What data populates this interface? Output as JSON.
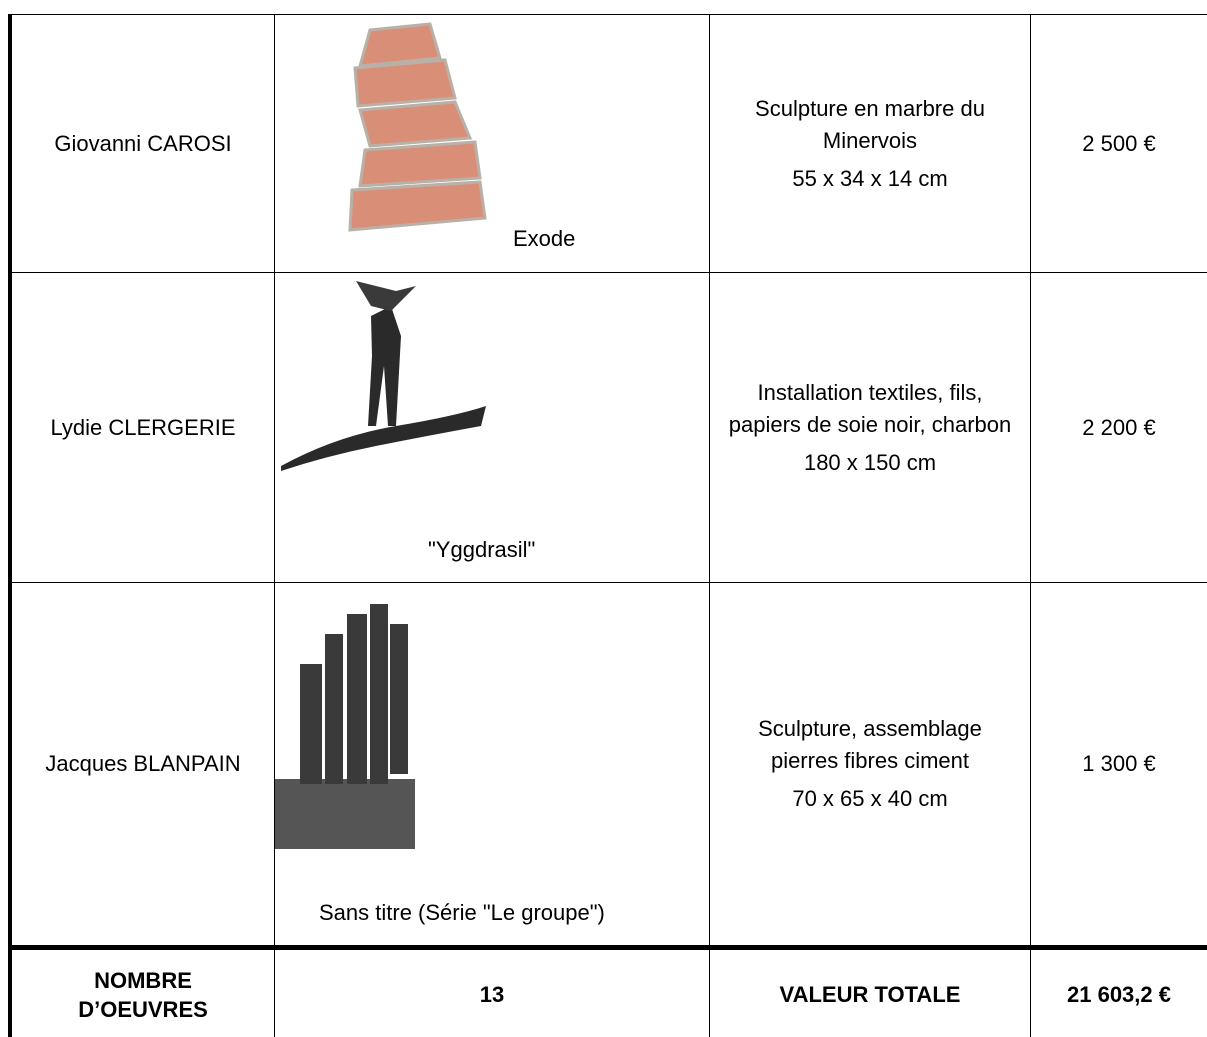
{
  "table": {
    "rows": [
      {
        "artist": "Giovanni CAROSI",
        "title": "Exode",
        "description": "Sculpture en marbre du Minervois",
        "dimensions": "55 x 34 x 14 cm",
        "price": "2 500 €"
      },
      {
        "artist": "Lydie CLERGERIE",
        "title": "\"Yggdrasil\"",
        "description": "Installation textiles, fils, papiers de soie noir, charbon",
        "dimensions": "180 x 150 cm",
        "price": "2 200 €"
      },
      {
        "artist": "Jacques BLANPAIN",
        "title": "Sans titre (Série \"Le groupe\")",
        "description": "Sculpture, assemblage pierres fibres ciment",
        "dimensions": "70 x 65 x 40 cm",
        "price": "1 300 €"
      }
    ],
    "footer": {
      "count_label": "NOMBRE D’OEUVRES",
      "count": "13",
      "total_label": "VALEUR TOTALE",
      "total": "21 603,2 €"
    }
  }
}
